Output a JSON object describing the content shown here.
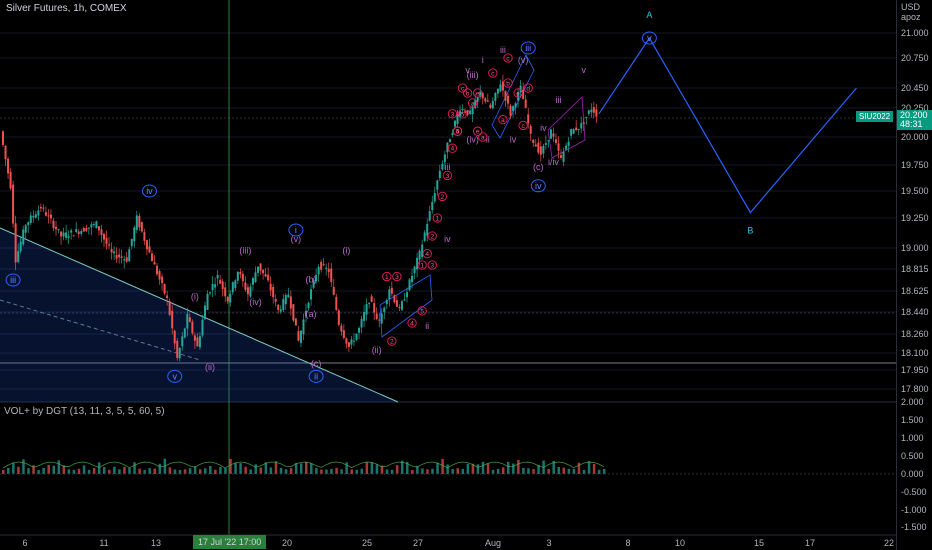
{
  "header": {
    "title": "Silver Futures, 1h, COMEX",
    "currency": "USD",
    "currency_sub": "apoz"
  },
  "price_tag": {
    "symbol": "SIU2022",
    "price": "20.200",
    "timer": "48:31"
  },
  "crosshair_date": "17 Jul '22   17:00",
  "volume_title": "VOL+ by DGT (13, 11, 3, 5, 5, 60, 5)",
  "colors": {
    "up": "#26a69a",
    "down": "#ef5350",
    "projection": "#2962ff",
    "wave_circle": "#2962ff",
    "wave_minor": "#e91e63",
    "wave_purple": "#9c27b0"
  },
  "chart_data": {
    "type": "line",
    "instrument": "Silver Futures",
    "price_axis": [
      "21.000",
      "20.750",
      "20.450",
      "20.250",
      "20.000",
      "19.750",
      "19.500",
      "19.250",
      "19.000",
      "18.815",
      "18.625",
      "18.440",
      "18.260",
      "18.100",
      "17.950",
      "17.800"
    ],
    "volume_axis": [
      "2.000",
      "1.500",
      "1.000",
      "0.500",
      "0.000",
      "-0.500",
      "-1.000",
      "-1.500"
    ],
    "x_ticks": [
      "6",
      "11",
      "13",
      "20",
      "25",
      "27",
      "Aug",
      "3",
      "8",
      "10",
      "15",
      "17",
      "22"
    ],
    "price_series": [
      {
        "t": 0,
        "v": 20.05
      },
      {
        "t": 2,
        "v": 19.55
      },
      {
        "t": 3,
        "v": 18.9
      },
      {
        "t": 5,
        "v": 19.2
      },
      {
        "t": 8,
        "v": 19.35
      },
      {
        "t": 12,
        "v": 19.1
      },
      {
        "t": 16,
        "v": 19.15
      },
      {
        "t": 19,
        "v": 19.2
      },
      {
        "t": 22,
        "v": 18.95
      },
      {
        "t": 25,
        "v": 18.9
      },
      {
        "t": 27,
        "v": 19.25
      },
      {
        "t": 30,
        "v": 18.9
      },
      {
        "t": 33,
        "v": 18.55
      },
      {
        "t": 35,
        "v": 18.05
      },
      {
        "t": 37,
        "v": 18.4
      },
      {
        "t": 39,
        "v": 18.15
      },
      {
        "t": 41,
        "v": 18.6
      },
      {
        "t": 43,
        "v": 18.75
      },
      {
        "t": 45,
        "v": 18.55
      },
      {
        "t": 47,
        "v": 18.8
      },
      {
        "t": 49,
        "v": 18.6
      },
      {
        "t": 51,
        "v": 18.85
      },
      {
        "t": 53,
        "v": 18.7
      },
      {
        "t": 55,
        "v": 18.45
      },
      {
        "t": 57,
        "v": 18.6
      },
      {
        "t": 59,
        "v": 18.2
      },
      {
        "t": 61,
        "v": 18.55
      },
      {
        "t": 63,
        "v": 18.85
      },
      {
        "t": 65,
        "v": 18.8
      },
      {
        "t": 67,
        "v": 18.35
      },
      {
        "t": 69,
        "v": 18.15
      },
      {
        "t": 71,
        "v": 18.3
      },
      {
        "t": 73,
        "v": 18.55
      },
      {
        "t": 75,
        "v": 18.35
      },
      {
        "t": 77,
        "v": 18.65
      },
      {
        "t": 79,
        "v": 18.45
      },
      {
        "t": 81,
        "v": 18.7
      },
      {
        "t": 83,
        "v": 18.95
      },
      {
        "t": 85,
        "v": 19.3
      },
      {
        "t": 87,
        "v": 19.7
      },
      {
        "t": 89,
        "v": 20.0
      },
      {
        "t": 91,
        "v": 20.25
      },
      {
        "t": 93,
        "v": 20.2
      },
      {
        "t": 95,
        "v": 20.4
      },
      {
        "t": 97,
        "v": 20.25
      },
      {
        "t": 99,
        "v": 20.5
      },
      {
        "t": 101,
        "v": 20.2
      },
      {
        "t": 103,
        "v": 20.45
      },
      {
        "t": 105,
        "v": 20.0
      },
      {
        "t": 107,
        "v": 19.85
      },
      {
        "t": 109,
        "v": 20.05
      },
      {
        "t": 111,
        "v": 19.8
      },
      {
        "t": 113,
        "v": 20.05
      },
      {
        "t": 115,
        "v": 20.1
      },
      {
        "t": 117,
        "v": 20.25
      },
      {
        "t": 118,
        "v": 20.2
      }
    ],
    "projection": {
      "name": "",
      "points": [
        {
          "label": "",
          "t": 118,
          "v": 20.2
        },
        {
          "label": "A",
          "t": 128,
          "v": 20.95
        },
        {
          "label": "B",
          "t": 148,
          "v": 19.3
        },
        {
          "label": "",
          "t": 169,
          "v": 20.45
        }
      ]
    },
    "wave_labels": [
      {
        "text": "A",
        "t": 128,
        "v": 21.15,
        "style": "plain-blue"
      },
      {
        "text": "v",
        "t": 128,
        "v": 20.95,
        "style": "circle-blue"
      },
      {
        "text": "B",
        "t": 148,
        "v": 19.12,
        "style": "plain-blue"
      },
      {
        "text": "iii",
        "t": 104,
        "v": 20.85,
        "style": "circle-blue"
      },
      {
        "text": "iv",
        "t": 106,
        "v": 19.55,
        "style": "circle-blue"
      },
      {
        "text": "iii",
        "t": 2,
        "v": 18.72,
        "style": "circle-blue"
      },
      {
        "text": "iv",
        "t": 29,
        "v": 19.5,
        "style": "circle-blue"
      },
      {
        "text": "v",
        "t": 34,
        "v": 17.9,
        "style": "circle-blue"
      },
      {
        "text": "i",
        "t": 58,
        "v": 19.15,
        "style": "circle-blue"
      },
      {
        "text": "ii",
        "t": 62,
        "v": 17.9,
        "style": "circle-blue"
      },
      {
        "text": "(iii)",
        "t": 48,
        "v": 18.95,
        "style": "plain-purple"
      },
      {
        "text": "(iv)",
        "t": 50,
        "v": 18.5,
        "style": "plain-purple"
      },
      {
        "text": "(v)",
        "t": 58,
        "v": 19.05,
        "style": "plain-purple"
      },
      {
        "text": "(i)",
        "t": 38,
        "v": 18.55,
        "style": "plain-purple"
      },
      {
        "text": "(ii)",
        "t": 41,
        "v": 17.95,
        "style": "plain-purple"
      },
      {
        "text": "(i)",
        "t": 68,
        "v": 18.95,
        "style": "plain-purple"
      },
      {
        "text": "(ii)",
        "t": 74,
        "v": 18.1,
        "style": "plain-purple"
      },
      {
        "text": "(iii)",
        "t": 93,
        "v": 20.55,
        "style": "plain-purple"
      },
      {
        "text": "(iv)",
        "t": 93,
        "v": 19.95,
        "style": "plain-purple"
      },
      {
        "text": "(v)",
        "t": 103,
        "v": 20.7,
        "style": "plain-purple"
      },
      {
        "text": "(b)",
        "t": 61,
        "v": 18.7,
        "style": "plain-purple"
      },
      {
        "text": "(a)",
        "t": 61,
        "v": 18.4,
        "style": "plain-purple"
      },
      {
        "text": "(c)",
        "t": 62,
        "v": 17.98,
        "style": "plain-purple"
      },
      {
        "text": "(c)",
        "t": 106,
        "v": 19.7,
        "style": "plain-purple"
      },
      {
        "text": "iv",
        "t": 88,
        "v": 19.05,
        "style": "plain-purple"
      },
      {
        "text": "ii",
        "t": 84,
        "v": 18.3,
        "style": "plain-purple"
      },
      {
        "text": "iii",
        "t": 88,
        "v": 19.7,
        "style": "plain-purple"
      },
      {
        "text": "v",
        "t": 92,
        "v": 20.6,
        "style": "plain-purple"
      },
      {
        "text": "i",
        "t": 95,
        "v": 20.7,
        "style": "plain-purple"
      },
      {
        "text": "ii",
        "t": 96,
        "v": 19.95,
        "style": "plain-purple"
      },
      {
        "text": "iii",
        "t": 99,
        "v": 20.8,
        "style": "plain-purple"
      },
      {
        "text": "iv",
        "t": 101,
        "v": 19.95,
        "style": "plain-purple"
      },
      {
        "text": "iii",
        "t": 110,
        "v": 20.3,
        "style": "plain-purple"
      },
      {
        "text": "v",
        "t": 115,
        "v": 20.6,
        "style": "plain-purple"
      },
      {
        "text": "iv",
        "t": 107,
        "v": 20.05,
        "style": "plain-purple"
      },
      {
        "text": "i/iv",
        "t": 109,
        "v": 19.75,
        "style": "plain-purple"
      }
    ],
    "minor_circles": [
      {
        "text": "1",
        "t": 76,
        "v": 18.75
      },
      {
        "text": "2",
        "t": 77,
        "v": 18.2
      },
      {
        "text": "3",
        "t": 78,
        "v": 18.75
      },
      {
        "text": "4",
        "t": 81,
        "v": 18.35
      },
      {
        "text": "5",
        "t": 83,
        "v": 18.45
      },
      {
        "text": "1",
        "t": 83,
        "v": 18.85
      },
      {
        "text": "2",
        "t": 85,
        "v": 19.1
      },
      {
        "text": "3",
        "t": 85,
        "v": 18.85
      },
      {
        "text": "4",
        "t": 84,
        "v": 18.95
      },
      {
        "text": "1",
        "t": 86,
        "v": 19.25
      },
      {
        "text": "2",
        "t": 87,
        "v": 19.45
      },
      {
        "text": "3",
        "t": 88,
        "v": 19.65
      },
      {
        "text": "4",
        "t": 89,
        "v": 19.9
      },
      {
        "text": "5",
        "t": 90,
        "v": 20.05
      },
      {
        "text": "3",
        "t": 89,
        "v": 20.2
      },
      {
        "text": "4",
        "t": 90,
        "v": 20.05
      },
      {
        "text": "5",
        "t": 91,
        "v": 20.2
      },
      {
        "text": "c",
        "t": 91,
        "v": 20.45
      },
      {
        "text": "b",
        "t": 92,
        "v": 20.4
      },
      {
        "text": "a",
        "t": 93,
        "v": 20.3
      },
      {
        "text": "e",
        "t": 94,
        "v": 20.4
      },
      {
        "text": "c",
        "t": 97,
        "v": 20.6
      },
      {
        "text": "c",
        "t": 100,
        "v": 20.75
      },
      {
        "text": "b",
        "t": 100,
        "v": 20.5
      },
      {
        "text": "a",
        "t": 99,
        "v": 20.15
      },
      {
        "text": "e",
        "t": 102,
        "v": 20.4
      },
      {
        "text": "c",
        "t": 103,
        "v": 20.1
      },
      {
        "text": "d",
        "t": 104,
        "v": 20.45
      },
      {
        "text": "e",
        "t": 94,
        "v": 20.05
      },
      {
        "text": "a",
        "t": 95,
        "v": 20.0
      }
    ],
    "volume_bars": 120,
    "crosshair_t": 27
  }
}
